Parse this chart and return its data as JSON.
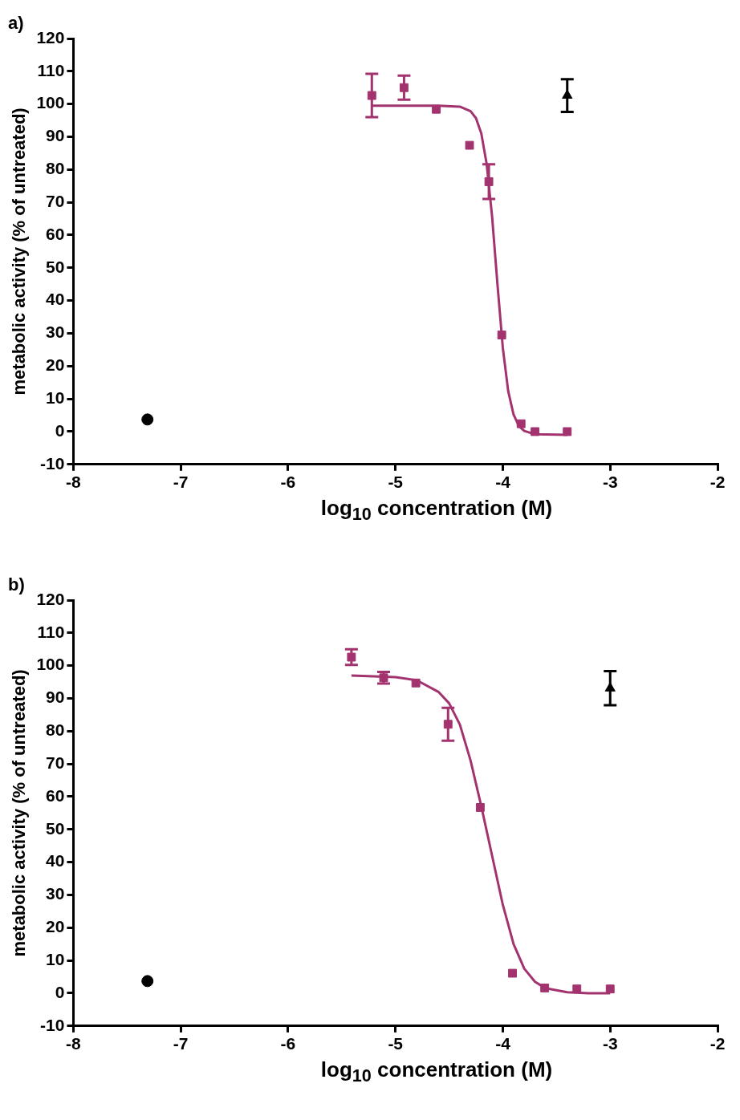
{
  "chart_data": [
    {
      "type": "scatter",
      "title": "a)",
      "xlabel": "log$_{10}$ concentration (M)",
      "ylabel": "metabolic activity (% of untreated)",
      "xlim": [
        -8,
        -2
      ],
      "xticks": [
        -8,
        -7,
        -6,
        -5,
        -4,
        -3,
        -2
      ],
      "ylim": [
        -10,
        120
      ],
      "yticks": [
        -10,
        0,
        10,
        20,
        30,
        40,
        50,
        60,
        70,
        80,
        90,
        100,
        110,
        120
      ],
      "grid": false,
      "legend": false,
      "series": [
        {
          "type": "line",
          "color": "#a3336e",
          "marker": "none",
          "line_style": "solid",
          "x": [
            -5.22,
            -4.6,
            -4.4,
            -4.3,
            -4.25,
            -4.2,
            -4.15,
            -4.1,
            -4.05,
            -4.0,
            -3.95,
            -3.9,
            -3.85,
            -3.8,
            -3.7,
            -3.4
          ],
          "values": [
            99.5,
            99.5,
            99.2,
            97.8,
            95.7,
            91,
            81.6,
            65.7,
            45,
            25.6,
            12.4,
            5.2,
            1.7,
            0.2,
            -0.8,
            -1
          ]
        },
        {
          "color": "#a3336e",
          "marker": "square",
          "x": [
            -5.22,
            -4.92,
            -4.62,
            -4.31,
            -4.13,
            -4.01,
            -3.83,
            -3.7,
            -3.4
          ],
          "values": [
            102.6,
            105,
            98.4,
            87.4,
            76.3,
            29.5,
            2.4,
            0,
            0
          ],
          "errors": [
            6.6,
            3.7,
            null,
            null,
            5.3,
            null,
            null,
            null,
            null
          ]
        },
        {
          "color": "#000000",
          "marker": "circle",
          "x": [
            -7.31
          ],
          "values": [
            3.7
          ]
        },
        {
          "color": "#000000",
          "marker": "triangle",
          "x": [
            -3.4
          ],
          "values": [
            102.6
          ],
          "errors": [
            5
          ]
        }
      ]
    },
    {
      "type": "scatter",
      "title": "b)",
      "xlabel": "log$_{10}$ concentration (M)",
      "ylabel": "metabolic activity (% of untreated)",
      "xlim": [
        -8,
        -2
      ],
      "xticks": [
        -8,
        -7,
        -6,
        -5,
        -4,
        -3,
        -2
      ],
      "ylim": [
        -10,
        120
      ],
      "yticks": [
        -10,
        0,
        10,
        20,
        30,
        40,
        50,
        60,
        70,
        80,
        90,
        100,
        110,
        120
      ],
      "grid": false,
      "legend": false,
      "series": [
        {
          "type": "line",
          "color": "#a3336e",
          "marker": "none",
          "line_style": "solid",
          "x": [
            -5.41,
            -5.0,
            -4.8,
            -4.6,
            -4.5,
            -4.4,
            -4.3,
            -4.2,
            -4.1,
            -4.0,
            -3.9,
            -3.8,
            -3.7,
            -3.6,
            -3.4,
            -3.2,
            -3.0
          ],
          "values": [
            97,
            96.5,
            95.5,
            92,
            88.5,
            82,
            71,
            57,
            42,
            27,
            15,
            7.5,
            3.5,
            1.5,
            0.3,
            0,
            0
          ]
        },
        {
          "color": "#a3336e",
          "marker": "square",
          "x": [
            -5.41,
            -5.11,
            -4.81,
            -4.51,
            -4.21,
            -3.91,
            -3.61,
            -3.31,
            -3.0
          ],
          "values": [
            102.6,
            96.3,
            94.7,
            82.1,
            56.7,
            6.1,
            1.6,
            1.3,
            1.3
          ],
          "errors": [
            2.4,
            1.8,
            null,
            5,
            null,
            null,
            null,
            null,
            null
          ]
        },
        {
          "color": "#000000",
          "marker": "circle",
          "x": [
            -7.31
          ],
          "values": [
            3.7
          ]
        },
        {
          "color": "#000000",
          "marker": "triangle",
          "x": [
            -3.0
          ],
          "values": [
            93.1
          ],
          "errors": [
            5.2
          ]
        }
      ]
    }
  ]
}
